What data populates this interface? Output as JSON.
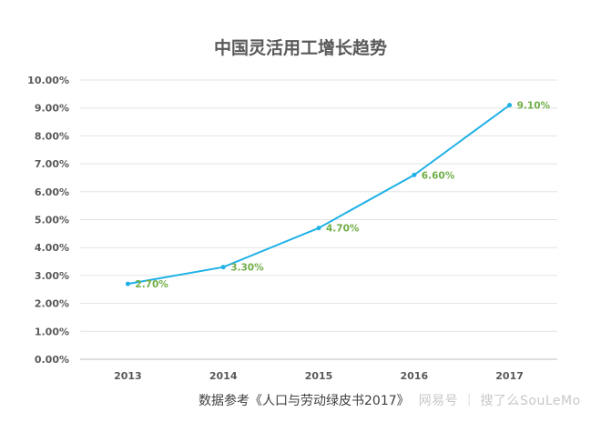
{
  "chart_data": {
    "type": "line",
    "title": "中国灵活用工增长趋势",
    "categories": [
      "2013",
      "2014",
      "2015",
      "2016",
      "2017"
    ],
    "series": [
      {
        "values": [
          2.7,
          3.3,
          4.7,
          6.6,
          9.1
        ],
        "color": "#1fb1e6"
      }
    ],
    "data_labels": [
      "2.70%",
      "3.30%",
      "4.70%",
      "6.60%",
      "9.10%"
    ],
    "yticks": [
      "0.00%",
      "1.00%",
      "2.00%",
      "3.00%",
      "4.00%",
      "5.00%",
      "6.00%",
      "7.00%",
      "8.00%",
      "9.00%",
      "10.00%"
    ],
    "ylim": [
      0,
      10
    ],
    "grid": true,
    "data_label_color": "#70ad47"
  },
  "footer": {
    "source": "数据参考《人口与劳动绿皮书2017》",
    "watermark": "网易号 ｜ 搜了么SouLeMo"
  }
}
